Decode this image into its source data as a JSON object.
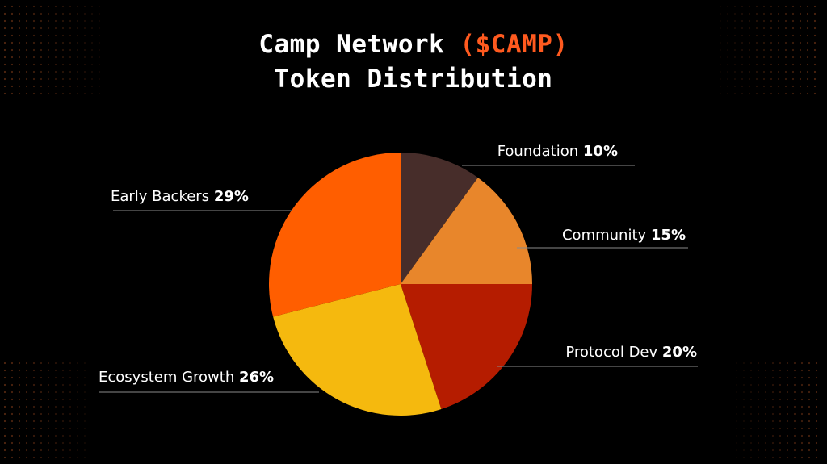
{
  "title": {
    "prefix": "Camp Network ",
    "ticker": "($CAMP)",
    "line2": "Token Distribution"
  },
  "chart_data": {
    "type": "pie",
    "start_angle_deg": 0,
    "direction": "clockwise",
    "slices": [
      {
        "name": "Foundation",
        "value": 10,
        "label": "10%",
        "color": "#472d2a"
      },
      {
        "name": "Community",
        "value": 15,
        "label": "15%",
        "color": "#e8862b"
      },
      {
        "name": "Protocol Dev",
        "value": 20,
        "label": "20%",
        "color": "#b51c00"
      },
      {
        "name": "Ecosystem Growth",
        "value": 26,
        "label": "26%",
        "color": "#f5b90e"
      },
      {
        "name": "Early Backers",
        "value": 29,
        "label": "29%",
        "color": "#ff5e00"
      }
    ]
  },
  "colors": {
    "background": "#000000",
    "accent": "#ff5a1f",
    "dots": "#5a2a12"
  }
}
